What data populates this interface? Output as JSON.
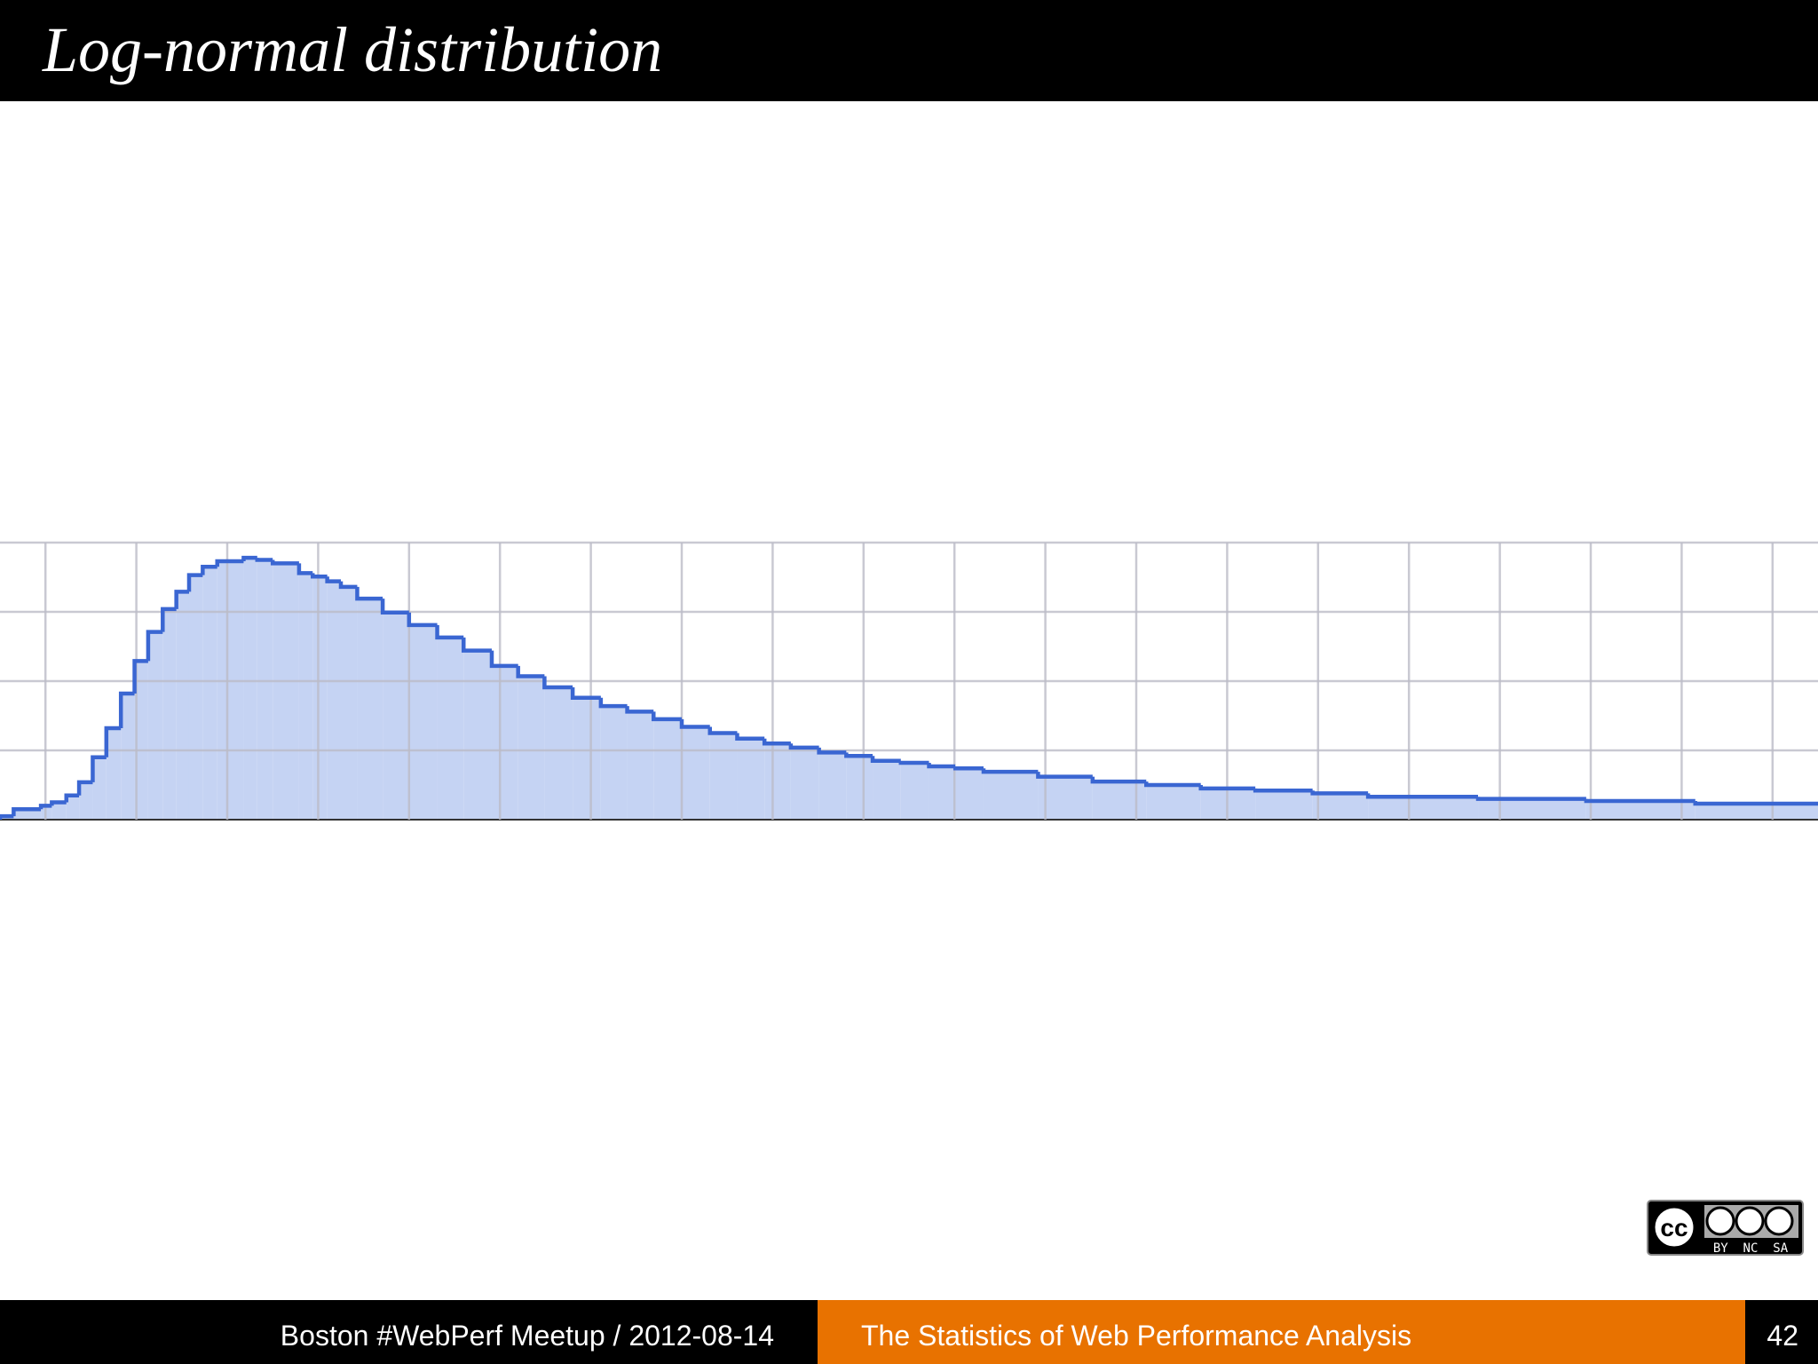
{
  "header": {
    "title": "Log-normal distribution"
  },
  "chart_data": {
    "type": "histogram",
    "bins": [
      0,
      0.15,
      0.45,
      0.57,
      0.73,
      0.87,
      1.02,
      1.17,
      1.33,
      1.48,
      1.63,
      1.79,
      1.94,
      2.08,
      2.23,
      2.39,
      2.68,
      2.83,
      3.0,
      3.29,
      3.44,
      3.6,
      3.75,
      3.93,
      4.21,
      4.5,
      4.81,
      5.1,
      5.41,
      5.7,
      5.99,
      6.3,
      6.61,
      6.9,
      7.19,
      7.5,
      7.81,
      8.11,
      8.41,
      8.7,
      9.01,
      9.31,
      9.6,
      9.91,
      10.22,
      10.51,
      10.82,
      11.42,
      12.02,
      12.61,
      13.21,
      13.81,
      14.44,
      15.05,
      16.26,
      17.45,
      18.65,
      20
    ],
    "values": [
      0.05,
      0.15,
      0.2,
      0.25,
      0.35,
      0.54,
      0.9,
      1.32,
      1.82,
      2.29,
      2.71,
      3.04,
      3.29,
      3.53,
      3.65,
      3.73,
      3.78,
      3.75,
      3.7,
      3.56,
      3.51,
      3.44,
      3.36,
      3.19,
      2.99,
      2.81,
      2.63,
      2.44,
      2.22,
      2.07,
      1.91,
      1.76,
      1.64,
      1.56,
      1.45,
      1.34,
      1.25,
      1.17,
      1.1,
      1.04,
      0.97,
      0.92,
      0.85,
      0.82,
      0.77,
      0.74,
      0.69,
      0.62,
      0.55,
      0.5,
      0.45,
      0.42,
      0.38,
      0.33,
      0.3,
      0.27,
      0.23
    ],
    "color": "#3a66d2",
    "fill": "#c5d3f3",
    "xlim": [
      0,
      20
    ],
    "xticks": [
      0.5,
      1.5,
      2.5,
      3.5,
      4.5,
      5.5,
      6.5,
      7.5,
      8.5,
      9.5,
      10.5,
      11.5,
      12.5,
      13.5,
      14.5,
      15.5,
      16.5,
      17.5,
      18.5,
      19.5
    ],
    "ylim": [
      0,
      4
    ],
    "yticks": [
      0,
      1,
      2,
      3,
      4
    ],
    "grid": true
  },
  "license": {
    "badge": "cc",
    "terms": "BY  NC  SA"
  },
  "footer": {
    "event": "Boston #WebPerf Meetup / 2012-08-14",
    "talk": "The Statistics of Web Performance Analysis",
    "page": "42"
  }
}
